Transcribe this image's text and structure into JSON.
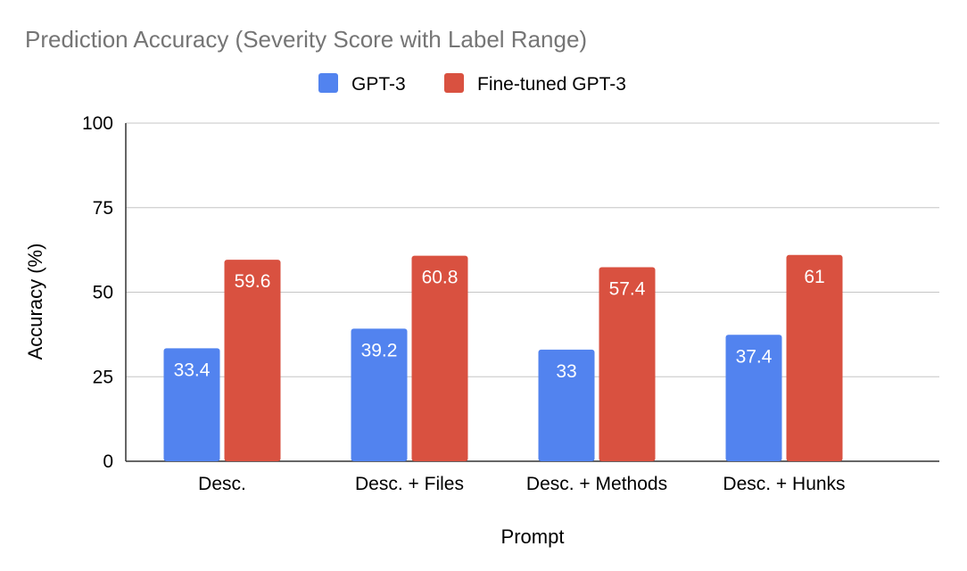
{
  "chart_data": {
    "type": "bar",
    "title": "Prediction Accuracy (Severity Score with Label Range)",
    "xlabel": "Prompt",
    "ylabel": "Accuracy (%)",
    "categories": [
      "Desc.",
      "Desc. + Files",
      "Desc. + Methods",
      "Desc. + Hunks"
    ],
    "series": [
      {
        "name": "GPT-3",
        "values": [
          33.4,
          39.2,
          33,
          37.4
        ],
        "labels": [
          "33.4",
          "39.2",
          "33",
          "37.4"
        ],
        "color": "#5283EF"
      },
      {
        "name": "Fine-tuned GPT-3",
        "values": [
          59.6,
          60.8,
          57.4,
          61
        ],
        "labels": [
          "59.6",
          "60.8",
          "57.4",
          "61"
        ],
        "color": "#D95140"
      }
    ],
    "ylim": [
      0,
      100
    ],
    "yticks": [
      0,
      25,
      50,
      75,
      100
    ],
    "grid": true,
    "legend_position": "top"
  }
}
